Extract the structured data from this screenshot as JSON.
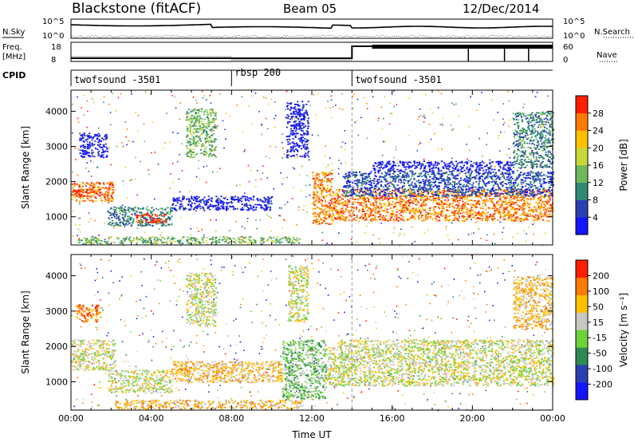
{
  "header": {
    "title": "Blackstone (fitACF)",
    "beam": "Beam 05",
    "date": "12/Dec/2014"
  },
  "top_panels": {
    "nsky_label": "N.Sky",
    "nsearch_label": "N.Search",
    "nsky_ticks": [
      "10^5",
      "10^0"
    ],
    "nsearch_ticks": [
      "10^5",
      "10^0"
    ],
    "freq_label": "Freq.",
    "freq_unit": "[MHz]",
    "freq_ticks": [
      "18",
      "8"
    ],
    "nave_label": "Nave",
    "nave_ticks": [
      "60",
      "0"
    ],
    "cpid_label": "CPID",
    "cpid_segments": [
      {
        "name": "twofsound -3501",
        "start_hour": 0
      },
      {
        "name": "rbsp 200",
        "start_hour": 8
      },
      {
        "name": "twofsound -3501",
        "start_hour": 14
      }
    ]
  },
  "chart_data": [
    {
      "type": "heatmap",
      "name": "power",
      "ylabel": "Slant Range [km]",
      "y_ticks": [
        1000,
        2000,
        3000,
        4000
      ],
      "ylim": [
        200,
        4600
      ],
      "xlim": [
        0,
        24
      ],
      "colorbar": {
        "label": "Power [dB]",
        "ticks": [
          "4",
          "8",
          "12",
          "16",
          "20",
          "24",
          "28"
        ],
        "colors": [
          "#1414ff",
          "#2a3fb2",
          "#2e8a72",
          "#6fb85b",
          "#c8d83a",
          "#ffc000",
          "#ff7a00",
          "#ff1e00"
        ]
      },
      "regions": [
        {
          "t0": 0.0,
          "t1": 2.1,
          "r0": 1450,
          "r1": 2000,
          "level": 6
        },
        {
          "t0": 0.0,
          "t1": 1.5,
          "r0": 1600,
          "r1": 1800,
          "level": 7
        },
        {
          "t0": 1.8,
          "t1": 5.0,
          "r0": 750,
          "r1": 1300,
          "level": 2
        },
        {
          "t0": 3.2,
          "t1": 4.8,
          "r0": 850,
          "r1": 1100,
          "level": 7
        },
        {
          "t0": 0.3,
          "t1": 11.5,
          "r0": 250,
          "r1": 450,
          "level": 3
        },
        {
          "t0": 5.0,
          "t1": 10.0,
          "r0": 1200,
          "r1": 1600,
          "level": 0
        },
        {
          "t0": 12.0,
          "t1": 13.0,
          "r0": 800,
          "r1": 2300,
          "level": 6
        },
        {
          "t0": 13.0,
          "t1": 24.0,
          "r0": 900,
          "r1": 1800,
          "level": 6
        },
        {
          "t0": 13.5,
          "t1": 24.0,
          "r0": 1600,
          "r1": 2300,
          "level": 1
        },
        {
          "t0": 15.0,
          "t1": 22.0,
          "r0": 2300,
          "r1": 2600,
          "level": 0
        },
        {
          "t0": 0.4,
          "t1": 1.8,
          "r0": 2700,
          "r1": 3400,
          "level": 0
        },
        {
          "t0": 5.7,
          "t1": 7.2,
          "r0": 2700,
          "r1": 4100,
          "level": 3
        },
        {
          "t0": 10.7,
          "t1": 11.8,
          "r0": 2700,
          "r1": 4300,
          "level": 0
        },
        {
          "t0": 22.0,
          "t1": 24.0,
          "r0": 2400,
          "r1": 4000,
          "level": 2
        }
      ]
    },
    {
      "type": "heatmap",
      "name": "velocity",
      "ylabel": "Slant Range [km]",
      "xlabel": "Time UT",
      "x_ticks": [
        "00:00",
        "04:00",
        "08:00",
        "12:00",
        "16:00",
        "20:00",
        "00:00"
      ],
      "y_ticks": [
        1000,
        2000,
        3000,
        4000
      ],
      "ylim": [
        200,
        4600
      ],
      "xlim": [
        0,
        24
      ],
      "colorbar": {
        "label": "Velocity [m s⁻¹]",
        "ticks": [
          "200",
          "100",
          "50",
          "15",
          "-15",
          "-50",
          "-100",
          "-200"
        ],
        "colors": [
          "#1414ff",
          "#2a3fb2",
          "#2e8a52",
          "#6ed23a",
          "#c8c8c0",
          "#ffc000",
          "#ff7a00",
          "#ff1e00"
        ]
      },
      "regions": [
        {
          "t0": 0.0,
          "t1": 2.2,
          "r0": 1350,
          "r1": 2200,
          "level": 4
        },
        {
          "t0": 1.8,
          "t1": 5.0,
          "r0": 700,
          "r1": 1350,
          "level": 4
        },
        {
          "t0": 2.0,
          "t1": 11.5,
          "r0": 250,
          "r1": 500,
          "level": 5
        },
        {
          "t0": 5.0,
          "t1": 10.5,
          "r0": 1000,
          "r1": 1600,
          "level": 5
        },
        {
          "t0": 10.5,
          "t1": 12.7,
          "r0": 500,
          "r1": 2200,
          "level": 3
        },
        {
          "t0": 12.7,
          "t1": 13.3,
          "r0": 900,
          "r1": 2000,
          "level": 4
        },
        {
          "t0": 13.3,
          "t1": 24.0,
          "r0": 900,
          "r1": 2200,
          "level": 4
        },
        {
          "t0": 0.2,
          "t1": 1.5,
          "r0": 2700,
          "r1": 3200,
          "level": 6
        },
        {
          "t0": 5.7,
          "t1": 7.2,
          "r0": 2600,
          "r1": 4100,
          "level": 4
        },
        {
          "t0": 10.8,
          "t1": 11.8,
          "r0": 2700,
          "r1": 4300,
          "level": 4
        },
        {
          "t0": 22.0,
          "t1": 24.0,
          "r0": 2500,
          "r1": 4000,
          "level": 5
        }
      ]
    }
  ]
}
